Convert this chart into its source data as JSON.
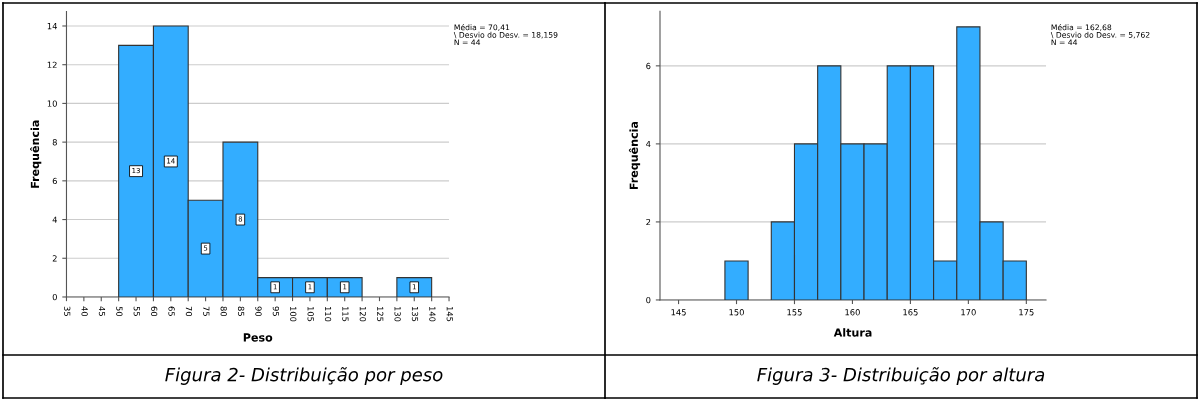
{
  "chart_data": [
    {
      "type": "histogram",
      "xlabel": "Peso",
      "ylabel": "Frequência",
      "color": "#33adff",
      "bins": [
        50,
        60,
        70,
        80,
        90,
        100,
        110,
        120,
        130,
        140
      ],
      "values": [
        13,
        14,
        5,
        8,
        1,
        1,
        1,
        0,
        1
      ],
      "value_labels": [
        "13",
        "14",
        "5",
        "8",
        "1",
        "1",
        "1",
        null,
        "1"
      ],
      "xlim": [
        35,
        145
      ],
      "xticks": [
        35,
        40,
        45,
        50,
        55,
        60,
        65,
        70,
        75,
        80,
        85,
        90,
        95,
        100,
        105,
        110,
        115,
        120,
        125,
        130,
        135,
        140,
        145
      ],
      "ylim": [
        0,
        14.75
      ],
      "yticks": [
        0,
        2,
        4,
        6,
        8,
        10,
        12,
        14
      ],
      "grid": "y",
      "legend": false,
      "annotations": [
        "Média = 70,41",
        "\\ Desvio do Desv. = 18,159",
        "N = 44",
        "Figura 2- Distribuição por peso"
      ]
    },
    {
      "type": "histogram",
      "xlabel": "Altura",
      "ylabel": "Frequência",
      "color": "#33adff",
      "bins": [
        149,
        151,
        153,
        155,
        157,
        159,
        161,
        163,
        165,
        167,
        169,
        171,
        173,
        175
      ],
      "values": [
        1,
        0,
        2,
        4,
        6,
        4,
        4,
        6,
        6,
        1,
        7,
        2,
        1
      ],
      "xlim": [
        143.4,
        176.7
      ],
      "xticks": [
        145,
        150,
        155,
        160,
        165,
        170,
        175
      ],
      "ylim": [
        0,
        7.4
      ],
      "yticks": [
        0,
        2,
        4,
        6
      ],
      "grid": "y",
      "legend": false,
      "annotations": [
        "Média = 162,68",
        "\\ Desvio do Desv. = 5,762",
        "N = 44",
        "Figura 3- Distribuição por altura"
      ]
    }
  ]
}
